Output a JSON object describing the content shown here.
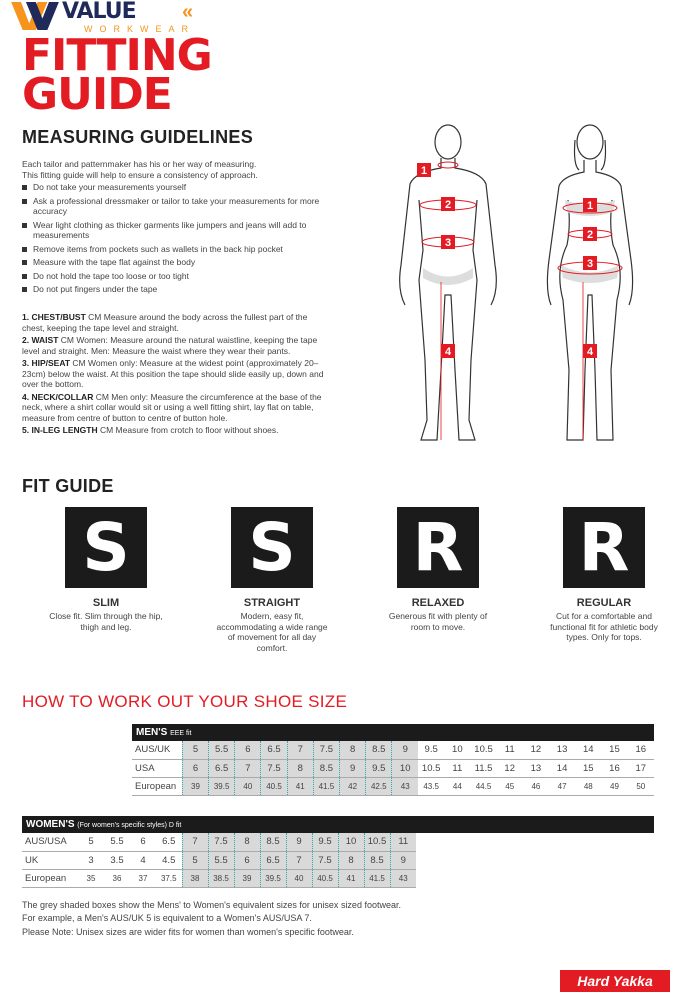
{
  "logo": {
    "brand": "VALUE",
    "sub": "WORKWEAR"
  },
  "title": {
    "line1": "FITTING",
    "line2": "GUIDE"
  },
  "measuring": {
    "heading": "MEASURING GUIDELINES",
    "intro": [
      "Each tailor and patternmaker has his or her way of measuring.",
      "This fitting guide will help to ensure a consistency of approach."
    ],
    "bullets": [
      "Do not take your measurements yourself",
      "Ask a professional dressmaker or tailor to take your measurements for more accuracy",
      "Wear light clothing as thicker garments like jumpers and jeans will add to measurements",
      "Remove items from pockets such as wallets in the back hip pocket",
      "Measure with the tape flat against the body",
      "Do not hold the tape too loose or too tight",
      "Do not put fingers under the tape"
    ],
    "items": [
      {
        "n": "1.",
        "t": "CHEST/BUST",
        "d": "CM Measure around the body across the fullest part of the chest, keeping the tape level and straight."
      },
      {
        "n": "2.",
        "t": "WAIST",
        "d": "CM Women: Measure around the natural waistline, keeping the tape level and straight. Men: Measure the waist where they wear their pants."
      },
      {
        "n": "3.",
        "t": "HIP/SEAT",
        "d": "CM Women only: Measure at the widest point (approximately 20–23cm) below the waist. At this position the tape should slide easily up, down and over the bottom."
      },
      {
        "n": "4.",
        "t": "NECK/COLLAR",
        "d": "CM Men only: Measure the circumference at the base of the neck, where a shirt collar would sit or using a well fitting shirt, lay flat on table, measure from centre of button to centre of button hole."
      },
      {
        "n": "5.",
        "t": "IN-LEG LENGTH",
        "d": "CM Measure from crotch to floor without shoes."
      }
    ]
  },
  "figures": {
    "male_markers": [
      "1",
      "2",
      "3",
      "4"
    ],
    "female_markers": [
      "1",
      "2",
      "3",
      "4"
    ]
  },
  "fit": {
    "heading": "FIT GUIDE",
    "styles": [
      {
        "letter": "S",
        "name": "SLIM",
        "desc": "Close fit. Slim through the hip, thigh and leg."
      },
      {
        "letter": "S",
        "name": "STRAIGHT",
        "desc": "Modern, easy fit, accommodating a wide range of movement for all day comfort."
      },
      {
        "letter": "R",
        "name": "RELAXED",
        "desc": "Generous fit with plenty of room to move."
      },
      {
        "letter": "R",
        "name": "REGULAR",
        "desc": "Cut for a comfortable and functional fit for athletic body types. Only for tops."
      }
    ]
  },
  "shoe": {
    "heading": "HOW TO WORK OUT YOUR SHOE SIZE",
    "mens": {
      "title": "MEN'S",
      "fit": "EEE fit",
      "shaded_count": 9,
      "rows": [
        {
          "label": "AUS/UK",
          "values": [
            "5",
            "5.5",
            "6",
            "6.5",
            "7",
            "7.5",
            "8",
            "8.5",
            "9",
            "9.5",
            "10",
            "10.5",
            "11",
            "12",
            "13",
            "14",
            "15",
            "16"
          ]
        },
        {
          "label": "USA",
          "values": [
            "6",
            "6.5",
            "7",
            "7.5",
            "8",
            "8.5",
            "9",
            "9.5",
            "10",
            "10.5",
            "11",
            "11.5",
            "12",
            "13",
            "14",
            "15",
            "16",
            "17"
          ]
        },
        {
          "label": "European",
          "values": [
            "39",
            "39.5",
            "40",
            "40.5",
            "41",
            "41.5",
            "42",
            "42.5",
            "43",
            "43.5",
            "44",
            "44.5",
            "45",
            "46",
            "47",
            "48",
            "49",
            "50"
          ]
        }
      ]
    },
    "womens": {
      "title": "WOMEN'S",
      "fit": "(For women's specific styles) D fit",
      "shaded_from": 4,
      "rows": [
        {
          "label": "AUS/USA",
          "values": [
            "5",
            "5.5",
            "6",
            "6.5",
            "7",
            "7.5",
            "8",
            "8.5",
            "9",
            "9.5",
            "10",
            "10.5",
            "11"
          ]
        },
        {
          "label": "UK",
          "values": [
            "3",
            "3.5",
            "4",
            "4.5",
            "5",
            "5.5",
            "6",
            "6.5",
            "7",
            "7.5",
            "8",
            "8.5",
            "9"
          ]
        },
        {
          "label": "European",
          "values": [
            "35",
            "36",
            "37",
            "37.5",
            "38",
            "38.5",
            "39",
            "39.5",
            "40",
            "40.5",
            "41",
            "41.5",
            "43"
          ]
        }
      ]
    },
    "notes": [
      "The grey shaded boxes show the Mens' to Women's equivalent sizes for unisex sized footwear.",
      "For example, a Men's AUS/UK 5 is equivalent to a Women's AUS/USA 7.",
      "Please Note: Unisex sizes are wider fits for women than women's specific footwear."
    ]
  },
  "footer": {
    "brand": "Hard Yakka"
  },
  "colors": {
    "red": "#e31b23",
    "dark": "#1b1b1b",
    "orange": "#f7941d",
    "navy": "#1f2a5a",
    "shade": "#d9d9d9"
  }
}
